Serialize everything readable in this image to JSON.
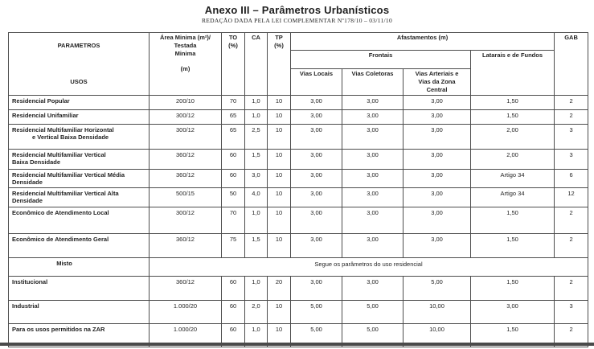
{
  "page": {
    "title": "Anexo III – Parâmetros Urbanísticos",
    "subtitle": "REDAÇÃO DADA PELA LEI COMPLEMENTAR Nº178/10 – 03/11/10"
  },
  "colors": {
    "ink": "#1f1f1f",
    "border": "#4d4d4d",
    "bottom_rule": "#4a4a4a"
  },
  "table": {
    "header": {
      "parametros": "PARAMETROS",
      "usos": "USOS",
      "area": "Área Minima (m²)/\nTestada\nMinima\n\n(m)",
      "to": "TO\n(%)",
      "ca": "CA",
      "tp": "TP\n(%)",
      "afastamentos": "Afastamentos (m)",
      "frontais": "Frontais",
      "vias_locais": "Vias Locais",
      "vias_coletoras": "Vias Coletoras",
      "vias_arteriais": "Vias Arteriais e\nVias da Zona\nCentral",
      "laterais": "Latarais e de Fundos",
      "gab": "GAB"
    },
    "rows": [
      {
        "uso": "Residencial Popular",
        "area": "200/10",
        "to": "70",
        "ca": "1,0",
        "tp": "10",
        "vias_locais": "3,00",
        "vias_coletoras": "3,00",
        "vias_arteriais": "3,00",
        "laterais": "1,50",
        "gab": "2"
      },
      {
        "uso": "Residencial Unifamiliar",
        "area": "300/12",
        "to": "65",
        "ca": "1,0",
        "tp": "10",
        "vias_locais": "3,00",
        "vias_coletoras": "3,00",
        "vias_arteriais": "3,00",
        "laterais": "1,50",
        "gab": "2"
      },
      {
        "uso": "Residencial Multifamiliar Horizontal\n            e Vertical Baixa Densidade",
        "area": "300/12",
        "to": "65",
        "ca": "2,5",
        "tp": "10",
        "vias_locais": "3,00",
        "vias_coletoras": "3,00",
        "vias_arteriais": "3,00",
        "laterais": "2,00",
        "gab": "3"
      },
      {
        "uso": "Residencial Multifamiliar Vertical\nBaixa Densidade",
        "area": "360/12",
        "to": "60",
        "ca": "1,5",
        "tp": "10",
        "vias_locais": "3,00",
        "vias_coletoras": "3,00",
        "vias_arteriais": "3,00",
        "laterais": "2,00",
        "gab": "3"
      },
      {
        "uso": "Residencial Multifamiliar Vertical Média\nDensidade",
        "area": "360/12",
        "to": "60",
        "ca": "3,0",
        "tp": "10",
        "vias_locais": "3,00",
        "vias_coletoras": "3,00",
        "vias_arteriais": "3,00",
        "laterais": "Artigo 34",
        "gab": "6"
      },
      {
        "uso": "Residencial Multifamiliar Vertical Alta\nDensidade",
        "area": "500/15",
        "to": "50",
        "ca": "4,0",
        "tp": "10",
        "vias_locais": "3,00",
        "vias_coletoras": "3,00",
        "vias_arteriais": "3,00",
        "laterais": "Artigo 34",
        "gab": "12"
      },
      {
        "uso": "Econômico de Atendimento Local",
        "area": "300/12",
        "to": "70",
        "ca": "1,0",
        "tp": "10",
        "vias_locais": "3,00",
        "vias_coletoras": "3,00",
        "vias_arteriais": "3,00",
        "laterais": "1,50",
        "gab": "2"
      },
      {
        "uso": "Econômico de Atendimento Geral",
        "area": "360/12",
        "to": "75",
        "ca": "1,5",
        "tp": "10",
        "vias_locais": "3,00",
        "vias_coletoras": "3,00",
        "vias_arteriais": "3,00",
        "laterais": "1,50",
        "gab": "2"
      },
      {
        "uso": "Misto",
        "uso_center": true,
        "merged_text": "Segue os parâmetros do uso residencial"
      },
      {
        "uso": "Institucional",
        "area": "360/12",
        "to": "60",
        "ca": "1,0",
        "tp": "20",
        "vias_locais": "3,00",
        "vias_coletoras": "3,00",
        "vias_arteriais": "5,00",
        "laterais": "1,50",
        "gab": "2"
      },
      {
        "uso": "Industrial",
        "area": "1.000/20",
        "to": "60",
        "ca": "2,0",
        "tp": "10",
        "vias_locais": "5,00",
        "vias_coletoras": "5,00",
        "vias_arteriais": "10,00",
        "laterais": "3,00",
        "gab": "3"
      },
      {
        "uso": "Para os usos permitidos na ZAR",
        "area": "1.000/20",
        "to": "60",
        "ca": "1,0",
        "tp": "10",
        "vias_locais": "5,00",
        "vias_coletoras": "5,00",
        "vias_arteriais": "10,00",
        "laterais": "1,50",
        "gab": "2"
      }
    ]
  }
}
